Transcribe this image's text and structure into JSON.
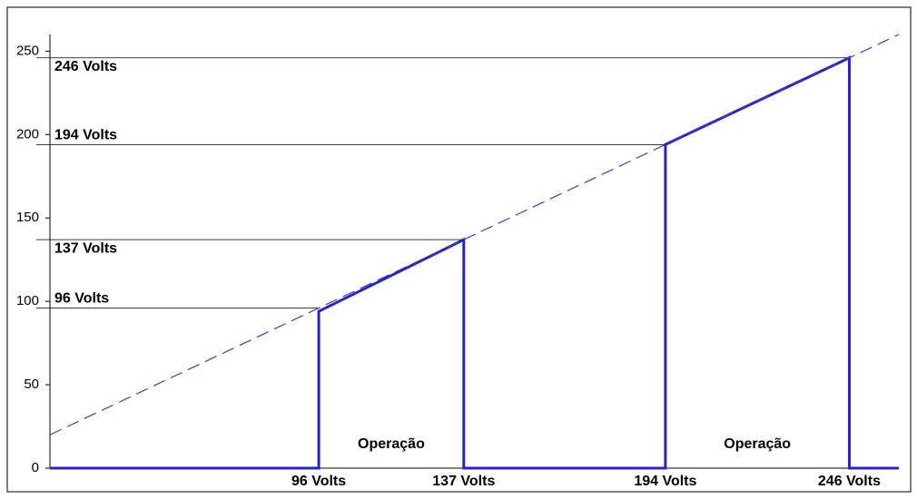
{
  "chart_data": {
    "type": "line",
    "xlim": [
      20,
      260
    ],
    "ylim": [
      0,
      260
    ],
    "yticks": [
      0,
      50,
      100,
      150,
      200,
      250
    ],
    "xticks": [
      {
        "value": 96,
        "label": "96 Volts"
      },
      {
        "value": 137,
        "label": "137 Volts"
      },
      {
        "value": 194,
        "label": "194 Volts"
      },
      {
        "value": 246,
        "label": "246 Volts"
      }
    ],
    "series": [
      {
        "color": "#2424c8",
        "x": [
          20,
          96,
          96,
          137,
          137,
          194,
          194,
          246,
          246,
          260
        ],
        "values": [
          0,
          0,
          94,
          137,
          0,
          0,
          194,
          246,
          0,
          0
        ]
      },
      {
        "color": "#3b3bc4",
        "dashed": true,
        "x": [
          20,
          260
        ],
        "values": [
          20,
          260
        ]
      }
    ],
    "hlines": [
      {
        "value": 96,
        "label": "96 Volts"
      },
      {
        "value": 137,
        "label": "137 Volts"
      },
      {
        "value": 194,
        "label": "194 Volts"
      },
      {
        "value": 246,
        "label": "246 Volts"
      }
    ],
    "annotations": [
      "Operação",
      "Operação"
    ],
    "grid": false
  }
}
